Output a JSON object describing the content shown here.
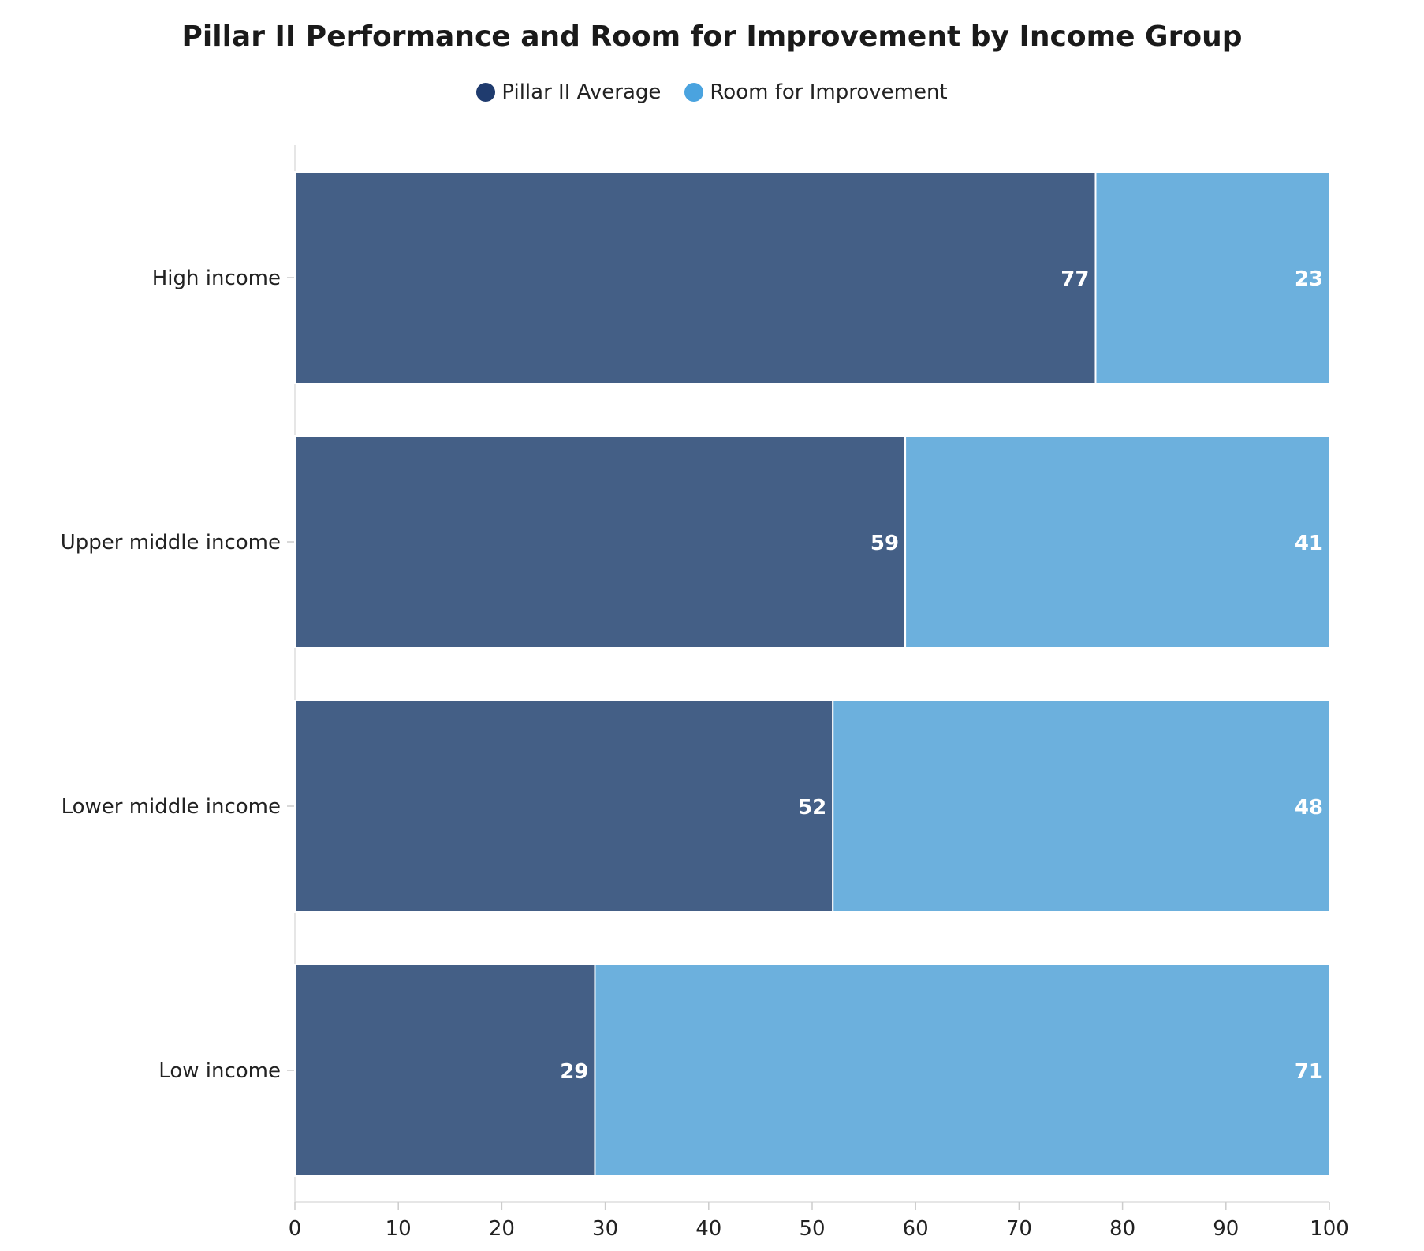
{
  "chart_data": {
    "type": "bar",
    "orientation": "horizontal",
    "stacked": true,
    "title": "Pillar II Performance and Room for Improvement by Income Group",
    "categories": [
      "High income",
      "Upper middle income",
      "Lower middle income",
      "Low income"
    ],
    "series": [
      {
        "name": "Pillar II Average",
        "values": [
          77.4,
          59,
          52,
          29
        ],
        "labels": [
          "77",
          "59",
          "52",
          "29"
        ],
        "legend_color": "#1f3b6e",
        "bar_color": "#445f86"
      },
      {
        "name": "Room for Improvement",
        "values": [
          22.6,
          41,
          48,
          71
        ],
        "labels": [
          "23",
          "41",
          "48",
          "71"
        ],
        "legend_color": "#4aa3df",
        "bar_color": "#6cb0dd"
      }
    ],
    "xlim": [
      0,
      100
    ],
    "xticks": [
      "0",
      "10",
      "20",
      "30",
      "40",
      "50",
      "60",
      "70",
      "80",
      "90",
      "100"
    ],
    "grid": false,
    "legend_position": "top"
  }
}
